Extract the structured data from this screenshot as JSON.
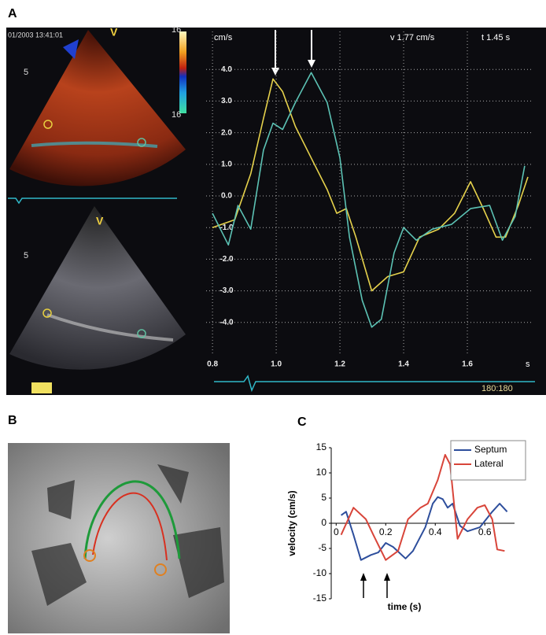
{
  "panels": {
    "labels": [
      "A",
      "B",
      "C"
    ]
  },
  "echo": {
    "timestamp": "01/2003 13:41:01",
    "view_labels": [
      "V",
      "V"
    ],
    "depth_labels": [
      "5",
      "5"
    ],
    "scale_labels": [
      "16",
      "16"
    ]
  },
  "chart_data": [
    {
      "type": "line",
      "y_unit": "cm/s",
      "x_unit": "s",
      "annotations": [
        "v 1.77 cm/s",
        "t 1.45 s",
        "180:180"
      ],
      "xlim": [
        0.78,
        1.8
      ],
      "ylim": [
        -5,
        5.2
      ],
      "xticks": [
        0.8,
        {
          "value": 1,
          "label": "1.0"
        },
        1.2,
        1.4,
        1.6
      ],
      "yticks": [
        {
          "value": 4,
          "label": "4.0"
        },
        {
          "value": 3,
          "label": "3.0"
        },
        {
          "value": 2,
          "label": "2.0"
        },
        {
          "value": 1,
          "label": "1.0"
        },
        {
          "value": 0,
          "label": "0.0"
        },
        {
          "value": -1,
          "label": "-1.0"
        },
        {
          "value": -2,
          "label": "-2.0"
        },
        {
          "value": -3,
          "label": "-3.0"
        },
        {
          "value": -4,
          "label": "-4.0"
        }
      ],
      "grid": true,
      "series": [
        {
          "color": "#e6d24c",
          "x": [
            0.8,
            0.87,
            0.92,
            0.96,
            0.99,
            1.02,
            1.06,
            1.11,
            1.16,
            1.19,
            1.22,
            1.25,
            1.3,
            1.35,
            1.4,
            1.45,
            1.51,
            1.56,
            1.61,
            1.65,
            1.69,
            1.72,
            1.76,
            1.79
          ],
          "values": [
            -1.0,
            -0.75,
            0.7,
            2.45,
            3.7,
            3.3,
            2.2,
            1.2,
            0.2,
            -0.55,
            -0.4,
            -1.3,
            -3.0,
            -2.55,
            -2.4,
            -1.3,
            -1.05,
            -0.55,
            0.45,
            -0.4,
            -1.3,
            -1.3,
            -0.3,
            0.6
          ]
        },
        {
          "color": "#5cc2b4",
          "x": [
            0.8,
            0.85,
            0.88,
            0.92,
            0.96,
            0.99,
            1.02,
            1.06,
            1.11,
            1.16,
            1.2,
            1.23,
            1.27,
            1.3,
            1.33,
            1.37,
            1.4,
            1.44,
            1.49,
            1.55,
            1.61,
            1.67,
            1.71,
            1.75,
            1.78
          ],
          "values": [
            -0.55,
            -1.55,
            -0.3,
            -1.05,
            1.45,
            2.3,
            2.1,
            2.95,
            3.9,
            2.95,
            1.2,
            -1.3,
            -3.3,
            -4.15,
            -3.9,
            -1.8,
            -1.0,
            -1.4,
            -1.05,
            -0.9,
            -0.4,
            -0.3,
            -1.4,
            -0.65,
            0.95
          ]
        }
      ]
    },
    {
      "type": "line",
      "x_label": "time (s)",
      "y_label": "velocity (cm/s)",
      "xlim": [
        -0.02,
        0.72
      ],
      "ylim": [
        -15,
        15
      ],
      "xticks": [
        0,
        0.2,
        0.4,
        0.6
      ],
      "yticks": [
        15,
        10,
        5,
        0,
        -5,
        -10,
        -15
      ],
      "grid": false,
      "legend": "upper right",
      "series": [
        {
          "name": "Septum",
          "color": "#2d4e9c",
          "x": [
            0.02,
            0.04,
            0.07,
            0.1,
            0.14,
            0.17,
            0.2,
            0.23,
            0.28,
            0.31,
            0.36,
            0.39,
            0.41,
            0.43,
            0.45,
            0.47,
            0.5,
            0.53,
            0.58,
            0.63,
            0.66,
            0.69
          ],
          "values": [
            1.6,
            2.3,
            -2.3,
            -7.3,
            -6.3,
            -5.8,
            -3.9,
            -4.7,
            -7.0,
            -5.5,
            -0.8,
            3.9,
            5.2,
            4.8,
            3.1,
            3.9,
            -0.5,
            -1.6,
            -0.8,
            2.3,
            3.9,
            2.3
          ]
        },
        {
          "name": "Lateral",
          "color": "#d8453a",
          "x": [
            0.02,
            0.07,
            0.12,
            0.15,
            0.2,
            0.25,
            0.29,
            0.34,
            0.37,
            0.41,
            0.44,
            0.46,
            0.49,
            0.53,
            0.57,
            0.6,
            0.63,
            0.65,
            0.68
          ],
          "values": [
            -2.3,
            3.1,
            0.8,
            -2.3,
            -7.3,
            -5.5,
            0.8,
            3.1,
            3.9,
            8.6,
            13.6,
            11.7,
            -3.1,
            0.8,
            3.1,
            3.6,
            0.8,
            -5.2,
            -5.5
          ]
        }
      ]
    }
  ]
}
